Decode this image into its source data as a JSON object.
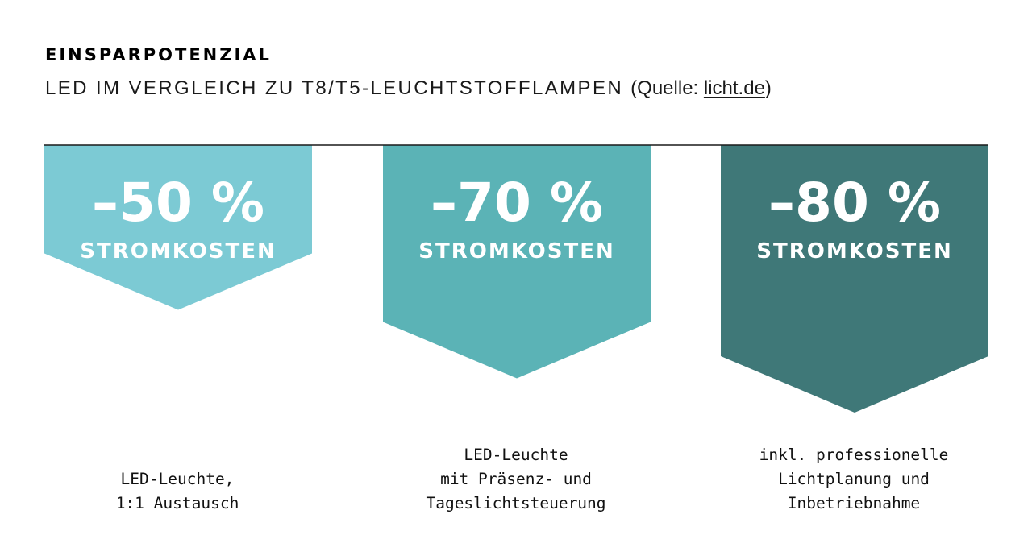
{
  "title": "EINSPARPOTENZIAL",
  "subtitle": {
    "text": "LED IM VERGLEICH ZU T8/T5-LEUCHTSTOFFLAMPEN",
    "source_prefix": "(Quelle: ",
    "source_link": "licht.de",
    "source_suffix": ")"
  },
  "chart_data": {
    "type": "bar",
    "title": "EINSPARPOTENZIAL",
    "subtitle": "LED IM VERGLEICH ZU T8/T5-LEUCHTSTOFFLAMPEN (Quelle: licht.de)",
    "unit_label": "STROMKOSTEN",
    "categories": [
      "LED-Leuchte, 1:1 Austausch",
      "LED-Leuchte mit Präsenz- und Tageslichtsteuerung",
      "inkl. professionelle Lichtplanung und Inbetriebnahme"
    ],
    "values": [
      -50,
      -70,
      -80
    ],
    "value_labels": [
      "–50 %",
      "–70 %",
      "–80 %"
    ],
    "colors": [
      "#7ccad4",
      "#5bb3b6",
      "#3f7878"
    ],
    "baseline_color": "#1a1a1a",
    "ylim": [
      -100,
      0
    ]
  },
  "captions": [
    [
      "LED-Leuchte,",
      "1:1 Austausch"
    ],
    [
      "LED-Leuchte",
      "mit Präsenz- und",
      "Tageslichtsteuerung"
    ],
    [
      "inkl. professionelle",
      "Lichtplanung und",
      "Inbetriebnahme"
    ]
  ]
}
